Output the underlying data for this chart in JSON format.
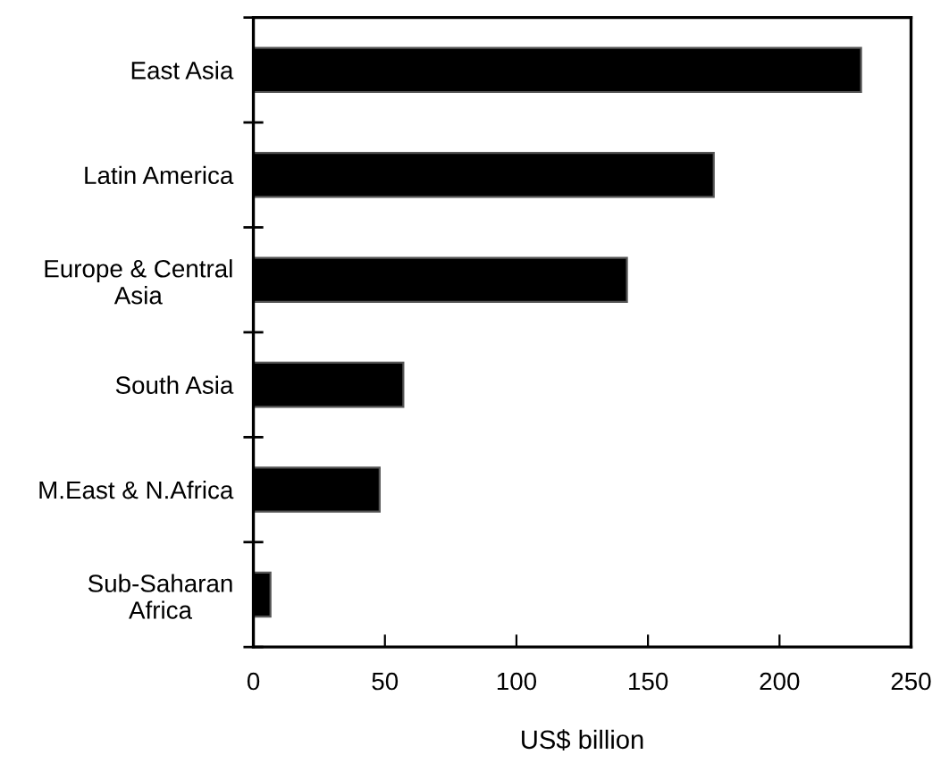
{
  "chart_data": {
    "type": "bar",
    "orientation": "horizontal",
    "xlabel": "US$ billion",
    "categories": [
      "East Asia",
      "Latin America",
      "Europe & Central\nAsia",
      "South Asia",
      "M.East & N.Africa",
      "Sub-Saharan\nAfrica"
    ],
    "values": [
      231,
      175,
      142,
      57,
      48,
      6.5
    ],
    "color": "#000000",
    "xlim": [
      0,
      250
    ],
    "xticks": [
      0,
      50,
      100,
      150,
      200,
      250
    ],
    "grid": false,
    "legend": false
  }
}
